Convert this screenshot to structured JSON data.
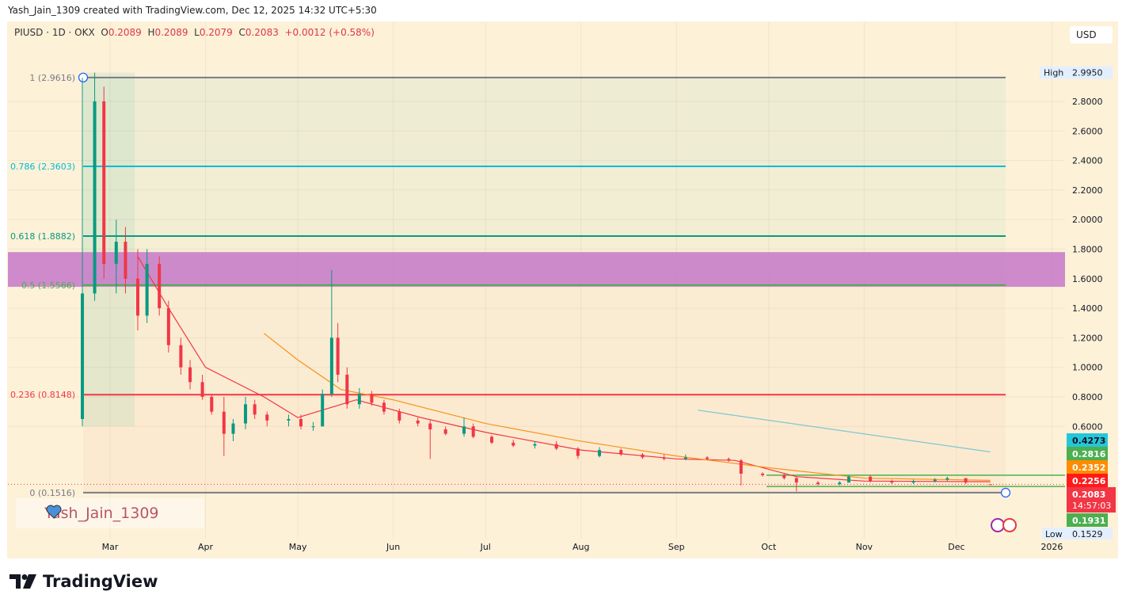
{
  "header": {
    "attribution": "Yash_Jain_1309 created with TradingView.com, Dec 12, 2025 14:32 UTC+5:30"
  },
  "legend": {
    "symbol": "PIUSD · 1D · OKX",
    "o_label": "O",
    "o": "0.2089",
    "h_label": "H",
    "h": "0.2089",
    "l_label": "L",
    "l": "0.2079",
    "c_label": "C",
    "c": "0.2083",
    "change": "+0.0012 (+0.58%)"
  },
  "currency": "USD",
  "watermark": {
    "text": "Yash_Jain_1309"
  },
  "brand": "TradingView",
  "colors": {
    "up": "#089981",
    "down": "#f23645",
    "purple_zone": "#c678c8",
    "background": "#fdf1d8"
  },
  "chart_data": {
    "type": "candlestick",
    "x_ticks": [
      [
        "2025-03-01",
        "Mar"
      ],
      [
        "2025-04-01",
        "Apr"
      ],
      [
        "2025-05-01",
        "May"
      ],
      [
        "2025-06-01",
        "Jun"
      ],
      [
        "2025-07-01",
        "Jul"
      ],
      [
        "2025-08-01",
        "Aug"
      ],
      [
        "2025-09-01",
        "Sep"
      ],
      [
        "2025-10-01",
        "Oct"
      ],
      [
        "2025-11-01",
        "Nov"
      ],
      [
        "2025-12-01",
        "Dec"
      ],
      [
        "2026-01-01",
        "2026"
      ]
    ],
    "y_ticks": [
      2.8,
      2.6,
      2.4,
      2.2,
      2.0,
      1.8,
      1.6,
      1.4,
      1.2,
      1.0,
      0.8,
      0.6
    ],
    "y_scale": "linear",
    "grid": true,
    "ohlc": [
      [
        "2025-02-20",
        0.65,
        2.96,
        0.6,
        1.5
      ],
      [
        "2025-02-24",
        1.5,
        2.995,
        1.45,
        2.8
      ],
      [
        "2025-02-27",
        2.8,
        2.9,
        1.6,
        1.7
      ],
      [
        "2025-03-03",
        1.7,
        2.0,
        1.5,
        1.85
      ],
      [
        "2025-03-06",
        1.85,
        1.95,
        1.5,
        1.6
      ],
      [
        "2025-03-10",
        1.6,
        1.8,
        1.25,
        1.35
      ],
      [
        "2025-03-13",
        1.35,
        1.8,
        1.3,
        1.7
      ],
      [
        "2025-03-17",
        1.7,
        1.75,
        1.35,
        1.4
      ],
      [
        "2025-03-20",
        1.4,
        1.45,
        1.1,
        1.15
      ],
      [
        "2025-03-24",
        1.15,
        1.2,
        0.95,
        1.0
      ],
      [
        "2025-03-27",
        1.0,
        1.05,
        0.85,
        0.9
      ],
      [
        "2025-03-31",
        0.9,
        0.95,
        0.78,
        0.8
      ],
      [
        "2025-04-03",
        0.8,
        0.82,
        0.68,
        0.7
      ],
      [
        "2025-04-07",
        0.7,
        0.8,
        0.4,
        0.55
      ],
      [
        "2025-04-10",
        0.55,
        0.65,
        0.5,
        0.62
      ],
      [
        "2025-04-14",
        0.62,
        0.8,
        0.58,
        0.75
      ],
      [
        "2025-04-17",
        0.75,
        0.78,
        0.65,
        0.68
      ],
      [
        "2025-04-21",
        0.68,
        0.7,
        0.6,
        0.64
      ],
      [
        "2025-04-28",
        0.64,
        0.68,
        0.6,
        0.65
      ],
      [
        "2025-05-02",
        0.65,
        0.68,
        0.58,
        0.6
      ],
      [
        "2025-05-06",
        0.6,
        0.63,
        0.57,
        0.6
      ],
      [
        "2025-05-09",
        0.6,
        0.85,
        0.6,
        0.82
      ],
      [
        "2025-05-12",
        0.82,
        1.66,
        0.8,
        1.2
      ],
      [
        "2025-05-14",
        1.2,
        1.3,
        0.9,
        0.95
      ],
      [
        "2025-05-17",
        0.95,
        1.0,
        0.72,
        0.75
      ],
      [
        "2025-05-21",
        0.75,
        0.86,
        0.72,
        0.82
      ],
      [
        "2025-05-25",
        0.82,
        0.84,
        0.74,
        0.76
      ],
      [
        "2025-05-29",
        0.76,
        0.78,
        0.68,
        0.7
      ],
      [
        "2025-06-03",
        0.7,
        0.72,
        0.62,
        0.64
      ],
      [
        "2025-06-09",
        0.64,
        0.66,
        0.6,
        0.62
      ],
      [
        "2025-06-13",
        0.62,
        0.64,
        0.38,
        0.58
      ],
      [
        "2025-06-18",
        0.58,
        0.6,
        0.54,
        0.55
      ],
      [
        "2025-06-24",
        0.55,
        0.66,
        0.53,
        0.6
      ],
      [
        "2025-06-27",
        0.6,
        0.62,
        0.52,
        0.53
      ],
      [
        "2025-07-03",
        0.53,
        0.54,
        0.48,
        0.49
      ],
      [
        "2025-07-10",
        0.49,
        0.51,
        0.46,
        0.47
      ],
      [
        "2025-07-17",
        0.47,
        0.5,
        0.45,
        0.48
      ],
      [
        "2025-07-24",
        0.48,
        0.5,
        0.44,
        0.45
      ],
      [
        "2025-07-31",
        0.45,
        0.46,
        0.38,
        0.4
      ],
      [
        "2025-08-07",
        0.4,
        0.46,
        0.39,
        0.44
      ],
      [
        "2025-08-14",
        0.44,
        0.45,
        0.4,
        0.41
      ],
      [
        "2025-08-21",
        0.41,
        0.42,
        0.38,
        0.39
      ],
      [
        "2025-08-28",
        0.39,
        0.41,
        0.37,
        0.38
      ],
      [
        "2025-09-04",
        0.38,
        0.41,
        0.37,
        0.39
      ],
      [
        "2025-09-11",
        0.39,
        0.4,
        0.37,
        0.38
      ],
      [
        "2025-09-18",
        0.38,
        0.39,
        0.36,
        0.37
      ],
      [
        "2025-09-22",
        0.37,
        0.38,
        0.2,
        0.28
      ],
      [
        "2025-09-29",
        0.28,
        0.29,
        0.26,
        0.27
      ],
      [
        "2025-10-06",
        0.27,
        0.28,
        0.24,
        0.25
      ],
      [
        "2025-10-10",
        0.25,
        0.26,
        0.16,
        0.22
      ],
      [
        "2025-10-17",
        0.22,
        0.23,
        0.2,
        0.21
      ],
      [
        "2025-10-24",
        0.21,
        0.23,
        0.2,
        0.22
      ],
      [
        "2025-10-27",
        0.22,
        0.27,
        0.22,
        0.26
      ],
      [
        "2025-11-03",
        0.26,
        0.27,
        0.22,
        0.23
      ],
      [
        "2025-11-10",
        0.23,
        0.24,
        0.21,
        0.22
      ],
      [
        "2025-11-17",
        0.22,
        0.24,
        0.21,
        0.23
      ],
      [
        "2025-11-24",
        0.23,
        0.25,
        0.22,
        0.24
      ],
      [
        "2025-11-28",
        0.24,
        0.26,
        0.23,
        0.25
      ],
      [
        "2025-12-04",
        0.25,
        0.25,
        0.21,
        0.22
      ],
      [
        "2025-12-12",
        0.2089,
        0.2089,
        0.2079,
        0.2083
      ]
    ],
    "moving_averages": [
      {
        "color": "#f23645",
        "points": [
          [
            "2025-03-10",
            1.75
          ],
          [
            "2025-03-20",
            1.4
          ],
          [
            "2025-04-01",
            1.0
          ],
          [
            "2025-04-20",
            0.8
          ],
          [
            "2025-05-01",
            0.66
          ],
          [
            "2025-05-20",
            0.78
          ],
          [
            "2025-06-10",
            0.66
          ],
          [
            "2025-07-01",
            0.56
          ],
          [
            "2025-08-01",
            0.44
          ],
          [
            "2025-09-01",
            0.38
          ],
          [
            "2025-09-20",
            0.37
          ],
          [
            "2025-10-10",
            0.26
          ],
          [
            "2025-11-01",
            0.23
          ],
          [
            "2025-12-12",
            0.2256
          ]
        ]
      },
      {
        "color": "#f7931a",
        "points": [
          [
            "2025-04-20",
            1.23
          ],
          [
            "2025-05-01",
            1.05
          ],
          [
            "2025-05-15",
            0.85
          ],
          [
            "2025-06-01",
            0.78
          ],
          [
            "2025-07-01",
            0.62
          ],
          [
            "2025-08-01",
            0.5
          ],
          [
            "2025-09-01",
            0.4
          ],
          [
            "2025-10-01",
            0.32
          ],
          [
            "2025-11-01",
            0.25
          ],
          [
            "2025-12-12",
            0.2352
          ]
        ]
      },
      {
        "color": "#7cc7d4",
        "points": [
          [
            "2025-09-08",
            0.71
          ],
          [
            "2025-12-12",
            0.4273
          ]
        ]
      }
    ],
    "fib_levels": [
      {
        "label": "1 (2.9616)",
        "value": 2.9616,
        "color": "#787b86"
      },
      {
        "label": "0.786 (2.3603)",
        "value": 2.3603,
        "color": "#00bcd4"
      },
      {
        "label": "0.618 (1.8882)",
        "value": 1.8882,
        "color": "#089981"
      },
      {
        "label": "0.5 (1.5566)",
        "value": 1.5566,
        "color": "#4caf50"
      },
      {
        "label": "0.236 (0.8148)",
        "value": 0.8148,
        "color": "#f23645"
      },
      {
        "label": "0 (0.1516)",
        "value": 0.1516,
        "color": "#787b86"
      }
    ],
    "zone": {
      "from": 1.545,
      "to": 1.78
    },
    "support_lines": [
      {
        "value": 0.27,
        "color": "#4caf50"
      },
      {
        "value": 0.1931,
        "color": "#4caf50"
      }
    ],
    "axis_labels": [
      {
        "text": "0.4273",
        "value": 0.4273,
        "color": "#26c6da",
        "fg": "#131722"
      },
      {
        "text": "0.2816",
        "value": 0.2816,
        "color": "#4caf50",
        "fg": "#fff"
      },
      {
        "text": "0.2352",
        "value": 0.2352,
        "color": "#ff8c00",
        "fg": "#fff"
      },
      {
        "text": "0.2256",
        "value": 0.2256,
        "color": "#ff1a1a",
        "fg": "#fff"
      },
      {
        "text": "0.2083",
        "value": 0.2083,
        "color": "#f23645",
        "fg": "#fff",
        "sub": "14:57:03"
      },
      {
        "text": "0.1931",
        "value": 0.1931,
        "color": "#4caf50",
        "fg": "#fff"
      }
    ],
    "high": {
      "label": "High",
      "value": "2.9950"
    },
    "low": {
      "label": "Low",
      "value": "0.1529"
    }
  }
}
